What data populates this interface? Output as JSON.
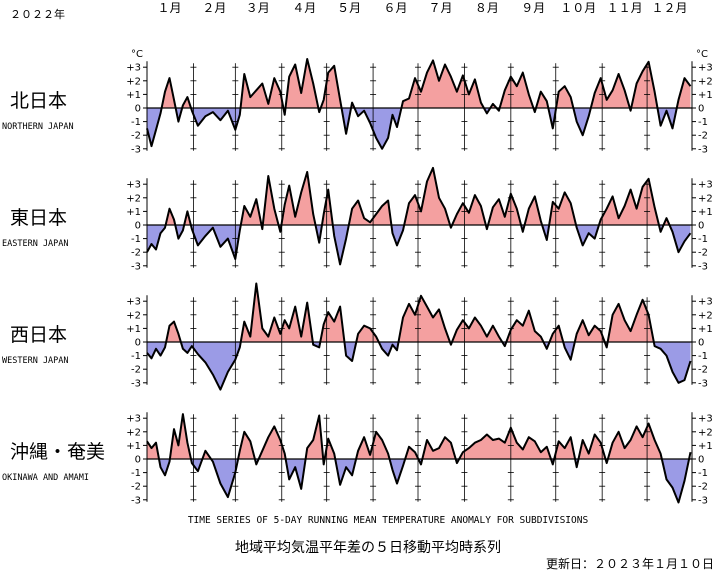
{
  "header": {
    "year_label": "２０２２年"
  },
  "month_labels": [
    "１月",
    "２月",
    "３月",
    "４月",
    "５月",
    "６月",
    "７月",
    "８月",
    "９月",
    "１０月",
    "１１月",
    "１２月"
  ],
  "unit_label": "°C",
  "y_tick_labels": [
    "+3",
    "+2",
    "+1",
    "0",
    "-1",
    "-2",
    "-3"
  ],
  "footer": {
    "english_title": "TIME SERIES OF 5-DAY RUNNING MEAN TEMPERATURE ANOMALY FOR SUBDIVISIONS",
    "japanese_title": "地域平均気温平年差の５日移動平均時系列",
    "updated": "更新日：２０２３年１月１０日"
  },
  "colors": {
    "positive": "#f4a0a0",
    "negative": "#9b9be6",
    "line": "#000000"
  },
  "chart_data": {
    "type": "area",
    "x_unit": "day of year 2022",
    "x_range": [
      1,
      365
    ],
    "ylim": [
      -3,
      3
    ],
    "yticks": [
      3,
      2,
      1,
      0,
      -1,
      -2,
      -3
    ],
    "series": [
      {
        "name": "北日本",
        "name_en": "NORTHERN JAPAN",
        "x": [
          1,
          4,
          7,
          10,
          13,
          16,
          19,
          22,
          25,
          28,
          31,
          35,
          40,
          45,
          50,
          55,
          60,
          63,
          66,
          70,
          74,
          78,
          82,
          86,
          90,
          93,
          96,
          100,
          104,
          108,
          112,
          116,
          119,
          122,
          126,
          130,
          134,
          138,
          142,
          146,
          150,
          154,
          158,
          162,
          165,
          168,
          172,
          176,
          180,
          184,
          188,
          192,
          196,
          200,
          204,
          208,
          212,
          216,
          220,
          224,
          228,
          232,
          236,
          240,
          244,
          248,
          252,
          256,
          260,
          264,
          268,
          272,
          276,
          280,
          284,
          288,
          292,
          296,
          300,
          304,
          308,
          312,
          316,
          320,
          324,
          328,
          332,
          336,
          340,
          344,
          348,
          352,
          356,
          360,
          364
        ],
        "y": [
          -1.5,
          -2.8,
          -1.6,
          -0.4,
          1.2,
          2.2,
          0.6,
          -1.0,
          0.2,
          0.8,
          -0.2,
          -1.3,
          -0.6,
          -0.3,
          -0.9,
          -0.2,
          -1.6,
          -0.5,
          2.5,
          0.8,
          1.3,
          1.8,
          0.3,
          2.2,
          1.2,
          -0.5,
          2.3,
          3.2,
          1.1,
          3.6,
          1.8,
          -0.3,
          0.6,
          2.6,
          3.1,
          0.6,
          -1.9,
          0.4,
          -0.6,
          -0.2,
          -1.1,
          -2.2,
          -3.0,
          -2.2,
          -0.5,
          -1.4,
          0.5,
          0.7,
          2.2,
          1.2,
          2.6,
          3.5,
          2.0,
          3.2,
          2.3,
          1.2,
          2.4,
          1.0,
          2.1,
          0.4,
          -0.4,
          0.3,
          -0.2,
          1.3,
          2.3,
          1.6,
          2.6,
          1.0,
          -0.3,
          1.2,
          0.5,
          -1.5,
          1.2,
          1.6,
          0.8,
          -1.0,
          -2.0,
          -0.6,
          1.1,
          2.2,
          0.6,
          1.3,
          2.5,
          1.3,
          -0.2,
          1.8,
          2.7,
          3.4,
          1.2,
          -1.3,
          -0.2,
          -1.5,
          0.6,
          2.2,
          1.6
        ]
      },
      {
        "name": "東日本",
        "name_en": "EASTERN JAPAN",
        "x": [
          1,
          4,
          7,
          10,
          13,
          16,
          19,
          22,
          25,
          28,
          31,
          35,
          40,
          45,
          50,
          55,
          60,
          63,
          66,
          70,
          74,
          78,
          82,
          86,
          90,
          93,
          96,
          100,
          104,
          108,
          112,
          116,
          119,
          122,
          126,
          130,
          134,
          138,
          142,
          146,
          150,
          154,
          158,
          162,
          165,
          168,
          172,
          176,
          180,
          184,
          188,
          192,
          196,
          200,
          204,
          208,
          212,
          216,
          220,
          224,
          228,
          232,
          236,
          240,
          244,
          248,
          252,
          256,
          260,
          264,
          268,
          272,
          276,
          280,
          284,
          288,
          292,
          296,
          300,
          304,
          308,
          312,
          316,
          320,
          324,
          328,
          332,
          336,
          340,
          344,
          348,
          352,
          356,
          360,
          364
        ],
        "y": [
          -2.0,
          -1.4,
          -1.8,
          -0.6,
          -0.2,
          1.2,
          0.4,
          -1.0,
          -0.4,
          1.0,
          -0.3,
          -1.5,
          -0.8,
          -0.2,
          -1.6,
          -1.0,
          -2.5,
          -0.4,
          1.4,
          0.6,
          1.9,
          -0.3,
          3.6,
          1.2,
          -0.5,
          1.5,
          2.9,
          0.6,
          2.4,
          3.9,
          0.8,
          -1.3,
          0.8,
          2.6,
          -0.8,
          -2.9,
          -1.0,
          1.2,
          1.8,
          0.5,
          0.2,
          0.8,
          1.4,
          1.8,
          -0.6,
          -1.5,
          -0.4,
          1.6,
          2.2,
          1.0,
          3.2,
          4.2,
          2.0,
          1.2,
          -0.2,
          0.8,
          1.6,
          0.9,
          2.2,
          1.4,
          -0.3,
          1.3,
          1.9,
          0.6,
          2.3,
          1.2,
          -0.5,
          1.2,
          2.1,
          0.3,
          -1.1,
          1.7,
          1.2,
          2.4,
          1.6,
          -0.2,
          -1.5,
          -0.6,
          -1.0,
          0.4,
          1.2,
          2.1,
          0.5,
          1.4,
          2.6,
          1.2,
          2.8,
          3.4,
          1.3,
          -0.5,
          0.5,
          -0.5,
          -2.0,
          -1.2,
          -0.6
        ]
      },
      {
        "name": "西日本",
        "name_en": "WESTERN JAPAN",
        "x": [
          1,
          4,
          7,
          10,
          13,
          16,
          19,
          22,
          25,
          28,
          31,
          35,
          40,
          45,
          50,
          55,
          60,
          63,
          66,
          70,
          74,
          78,
          82,
          86,
          90,
          93,
          96,
          100,
          104,
          108,
          112,
          116,
          119,
          122,
          126,
          130,
          134,
          138,
          142,
          146,
          150,
          154,
          158,
          162,
          165,
          168,
          172,
          176,
          180,
          184,
          188,
          192,
          196,
          200,
          204,
          208,
          212,
          216,
          220,
          224,
          228,
          232,
          236,
          240,
          244,
          248,
          252,
          256,
          260,
          264,
          268,
          272,
          276,
          280,
          284,
          288,
          292,
          296,
          300,
          304,
          308,
          312,
          316,
          320,
          324,
          328,
          332,
          336,
          340,
          344,
          348,
          352,
          356,
          360,
          364
        ],
        "y": [
          -0.8,
          -1.2,
          -0.5,
          -1.0,
          -0.4,
          1.2,
          1.5,
          0.6,
          -0.5,
          -0.8,
          -0.3,
          -0.9,
          -1.5,
          -2.4,
          -3.5,
          -2.2,
          -1.3,
          -0.4,
          1.5,
          0.4,
          6.0,
          1.0,
          0.4,
          1.8,
          0.6,
          1.6,
          1.0,
          2.6,
          0.4,
          2.9,
          -0.2,
          -0.4,
          1.3,
          2.2,
          1.5,
          2.6,
          -1.0,
          -1.4,
          0.6,
          1.2,
          1.0,
          0.4,
          -0.5,
          -1.0,
          -0.2,
          -0.6,
          1.8,
          2.8,
          2.0,
          3.4,
          2.6,
          1.8,
          2.4,
          1.0,
          -0.2,
          0.9,
          1.6,
          1.0,
          1.8,
          1.2,
          0.4,
          1.2,
          0.4,
          -0.3,
          0.9,
          1.6,
          1.2,
          2.3,
          0.8,
          0.4,
          -0.5,
          0.6,
          1.2,
          -0.4,
          -1.3,
          0.6,
          1.6,
          0.5,
          1.2,
          0.8,
          -0.4,
          2.0,
          2.8,
          1.6,
          0.8,
          2.0,
          3.1,
          2.0,
          -0.3,
          -0.5,
          -1.0,
          -2.2,
          -3.0,
          -2.8,
          -1.4
        ]
      },
      {
        "name": "沖縄・奄美",
        "name_en": "OKINAWA AND AMAMI",
        "x": [
          1,
          4,
          7,
          10,
          13,
          16,
          19,
          22,
          25,
          28,
          31,
          35,
          40,
          45,
          50,
          55,
          60,
          63,
          66,
          70,
          74,
          78,
          82,
          86,
          90,
          93,
          96,
          100,
          104,
          108,
          112,
          116,
          119,
          122,
          126,
          130,
          134,
          138,
          142,
          146,
          150,
          154,
          158,
          162,
          165,
          168,
          172,
          176,
          180,
          184,
          188,
          192,
          196,
          200,
          204,
          208,
          212,
          216,
          220,
          224,
          228,
          232,
          236,
          240,
          244,
          248,
          252,
          256,
          260,
          264,
          268,
          272,
          276,
          280,
          284,
          288,
          292,
          296,
          300,
          304,
          308,
          312,
          316,
          320,
          324,
          328,
          332,
          336,
          340,
          344,
          348,
          352,
          356,
          360,
          364
        ],
        "y": [
          1.3,
          0.8,
          1.2,
          -0.6,
          -1.2,
          -0.2,
          2.2,
          1.0,
          3.3,
          1.2,
          -0.3,
          -0.9,
          0.6,
          -0.2,
          -1.8,
          -2.8,
          -1.0,
          0.6,
          2.0,
          1.3,
          -0.4,
          0.6,
          1.6,
          2.4,
          1.4,
          0.4,
          -1.5,
          -0.6,
          -2.2,
          0.8,
          1.4,
          3.2,
          -0.4,
          1.5,
          0.4,
          -1.9,
          -0.6,
          -1.2,
          0.6,
          1.6,
          0.3,
          2.0,
          1.4,
          0.4,
          -0.8,
          -1.8,
          -0.5,
          0.9,
          0.5,
          -0.4,
          1.4,
          0.6,
          0.8,
          1.6,
          1.2,
          -0.3,
          0.5,
          0.8,
          1.2,
          1.4,
          1.8,
          1.4,
          1.5,
          1.2,
          2.3,
          1.2,
          0.7,
          1.6,
          1.3,
          0.5,
          0.9,
          -0.4,
          1.3,
          0.8,
          1.6,
          -0.6,
          1.4,
          0.4,
          1.8,
          1.2,
          -0.3,
          1.2,
          2.0,
          0.8,
          1.4,
          2.4,
          1.6,
          2.6,
          1.4,
          0.4,
          -1.5,
          -2.1,
          -3.2,
          -1.6,
          0.5
        ]
      }
    ]
  }
}
